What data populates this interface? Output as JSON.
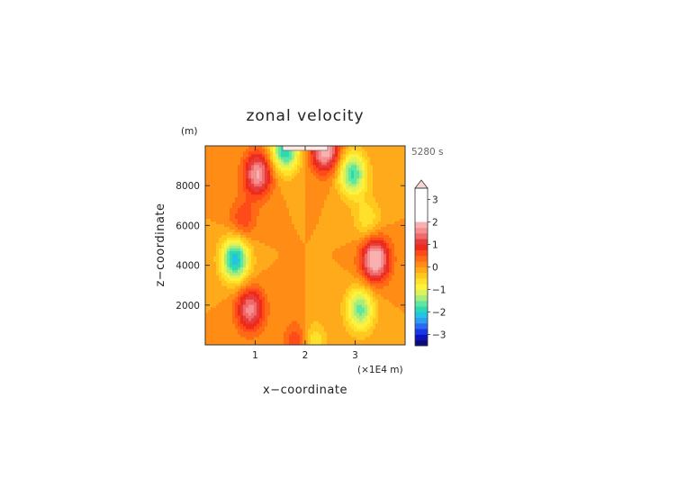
{
  "chart_data": {
    "type": "heatmap",
    "title": "zonal velocity",
    "xlabel": "x−coordinate",
    "ylabel": "z−coordinate",
    "y_unit": "(m)",
    "x_unit": "(×1E4 m)",
    "time_label": "5280 s",
    "xlim": [
      0,
      4
    ],
    "ylim": [
      0,
      10000
    ],
    "x_ticks": [
      1,
      2,
      3
    ],
    "y_ticks": [
      2000,
      4000,
      6000,
      8000
    ],
    "colorbar": {
      "range": [
        -3.5,
        3.5
      ],
      "interval": 0.25,
      "ticks": [
        3,
        2,
        1,
        0,
        -1,
        -2,
        -3
      ],
      "tick_labels": [
        "3",
        "2",
        "1",
        "0",
        "−1",
        "−2",
        "−3"
      ],
      "extend": "max"
    },
    "features": [
      {
        "x": 0.6,
        "z": 4300,
        "u": -2.2
      },
      {
        "x": 3.4,
        "z": 4300,
        "u": 2.2
      },
      {
        "x": 1.05,
        "z": 8600,
        "u": 1.8
      },
      {
        "x": 2.95,
        "z": 8600,
        "u": -1.8
      },
      {
        "x": 0.9,
        "z": 1800,
        "u": 1.6
      },
      {
        "x": 3.1,
        "z": 1800,
        "u": -1.6
      },
      {
        "x": 0.75,
        "z": 6300,
        "u": 0.7
      },
      {
        "x": 3.25,
        "z": 6300,
        "u": -0.7
      },
      {
        "x": 1.6,
        "z": 9800,
        "u": -2.0
      },
      {
        "x": 2.4,
        "z": 9800,
        "u": 2.0
      },
      {
        "x": 2.1,
        "z": 100,
        "u": -1.2
      },
      {
        "x": 1.9,
        "z": 100,
        "u": 1.2
      }
    ]
  },
  "palette": {
    "levels": [
      "#0a0a7a",
      "#0c14b8",
      "#1838e8",
      "#2a6af0",
      "#2f9cf0",
      "#22c4e6",
      "#2fd8b0",
      "#5fe6a0",
      "#a8ec7a",
      "#dcf25a",
      "#fff23c",
      "#ffe02a",
      "#ffc81e",
      "#ffaa1a",
      "#ff8c14",
      "#ff6a14",
      "#ff4a1a",
      "#ee2a1a",
      "#e63c3c",
      "#f06a6a",
      "#f59090",
      "#f8b0b0"
    ],
    "extend_top": "#fbd5d5",
    "band_edge": "#ffe9e9"
  }
}
